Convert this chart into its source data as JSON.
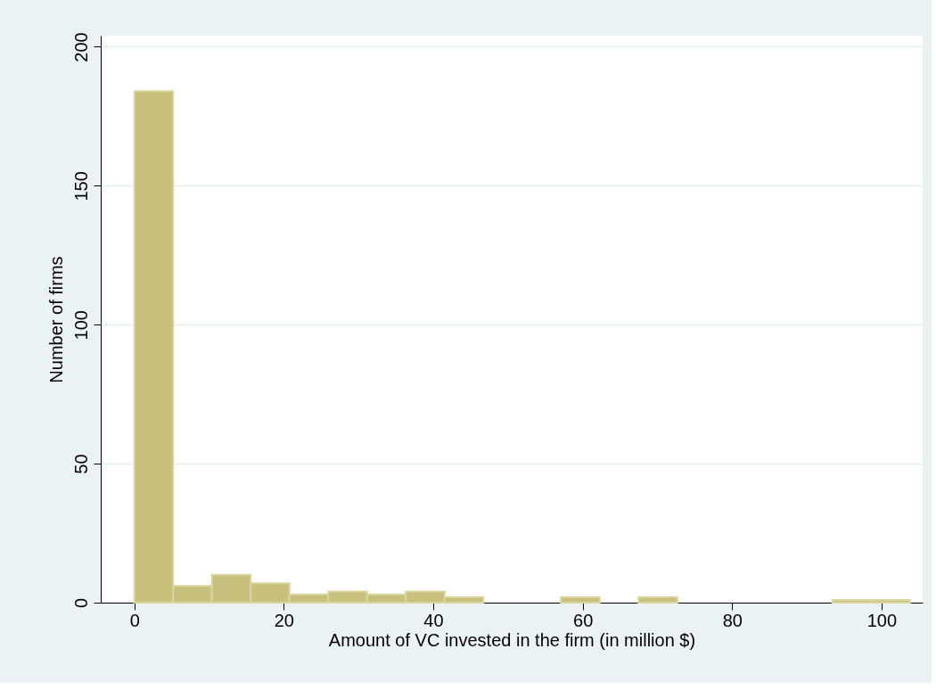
{
  "chart_data": {
    "type": "histogram",
    "xlabel": "Amount of VC invested in the firm (in million $)",
    "ylabel": "Number of firms",
    "bins": [
      0,
      5.19,
      10.38,
      15.57,
      20.76,
      25.95,
      31.14,
      36.33,
      41.52,
      46.71,
      51.9,
      57.09,
      62.28,
      67.47,
      72.66,
      77.85,
      83.04,
      88.23,
      93.42,
      98.61,
      103.8
    ],
    "values": [
      184,
      6,
      10,
      7,
      3,
      4,
      3,
      4,
      2,
      0,
      0,
      2,
      0,
      2,
      0,
      0,
      0,
      0,
      1,
      1
    ],
    "color": "#c8c17e",
    "xlim": [
      -4.5,
      105.5
    ],
    "xticks": [
      0,
      20,
      40,
      60,
      80,
      100
    ],
    "ylim": [
      0,
      204
    ],
    "yticks": [
      0,
      50,
      100,
      150,
      200
    ],
    "grid": "y"
  }
}
